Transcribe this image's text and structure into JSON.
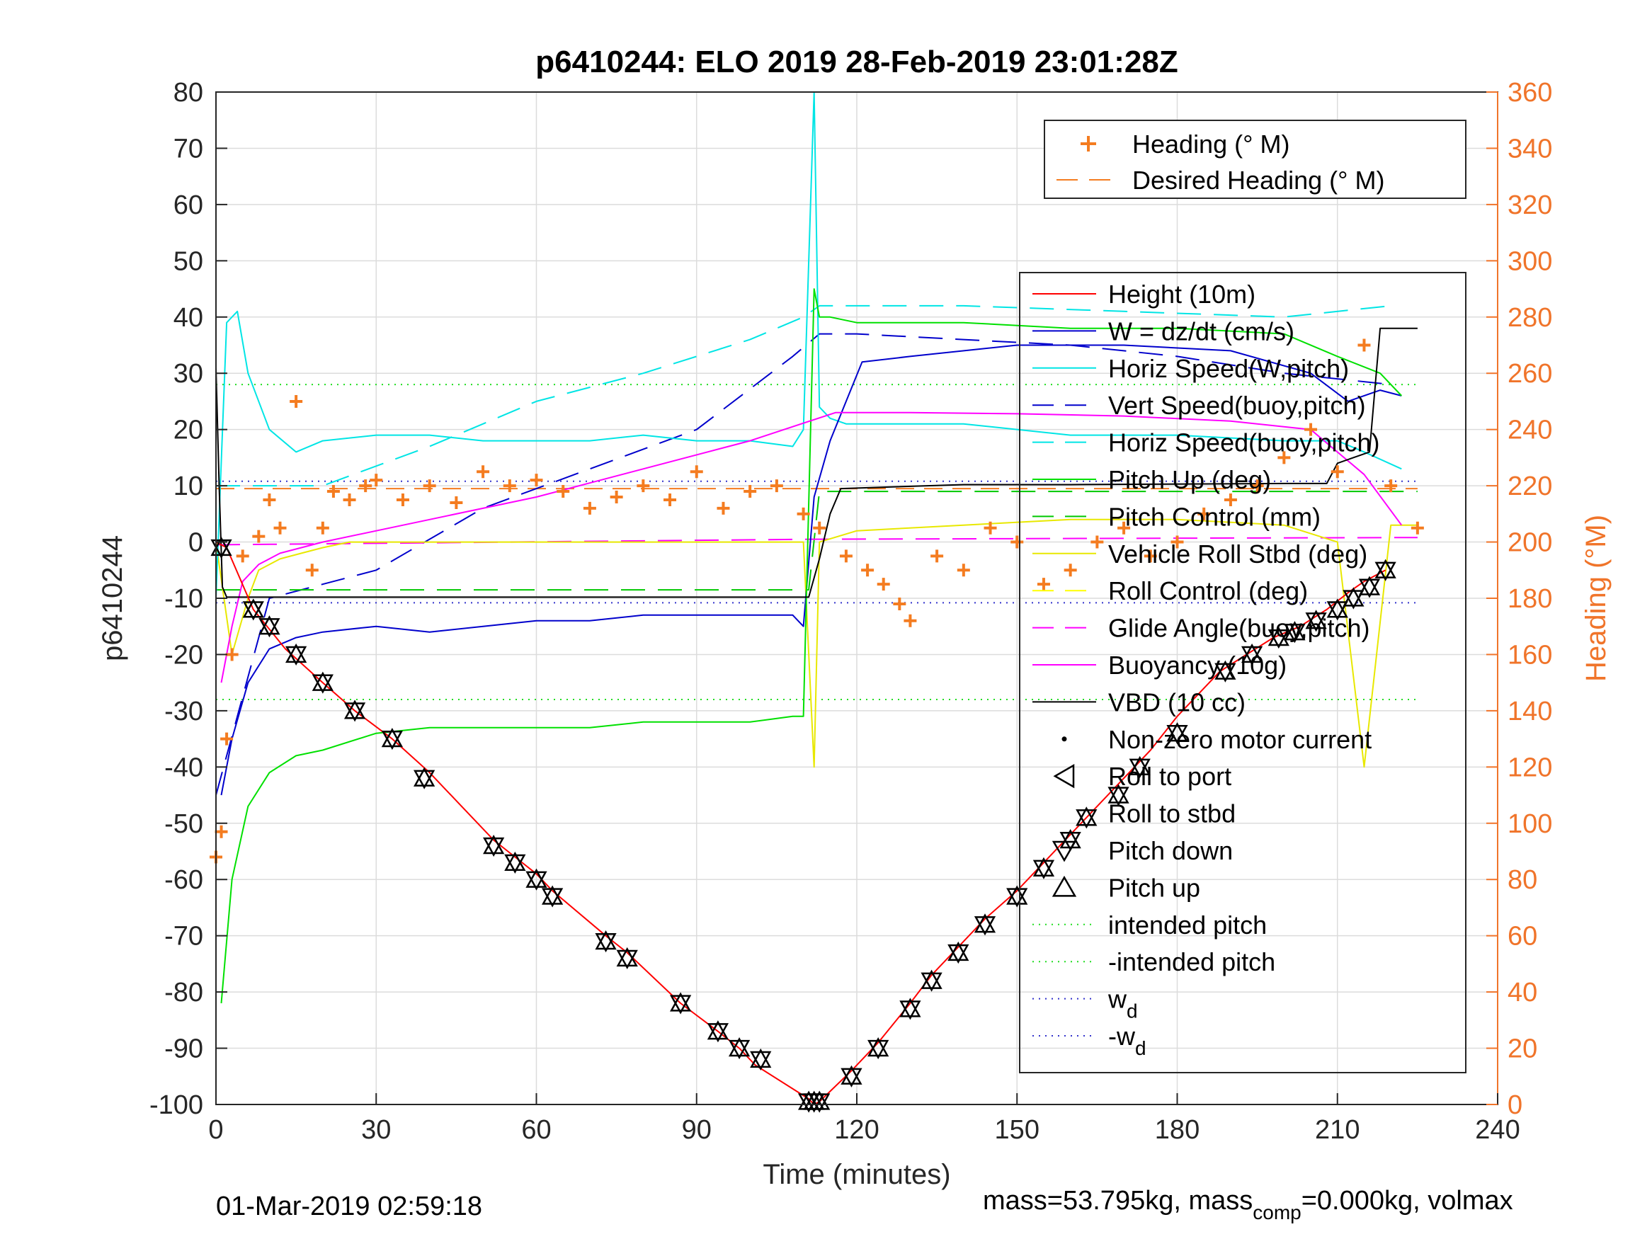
{
  "figure": {
    "title": "p6410244: ELO 2019 28-Feb-2019 23:01:28Z",
    "footer_left": "01-Mar-2019 02:59:18",
    "footer_right": {
      "prefix": "mass=53.795kg, mass",
      "sub": "comp",
      "suffix": "=0.000kg, volmax"
    }
  },
  "chart_data": {
    "type": "line",
    "title": "p6410244: ELO 2019 28-Feb-2019 23:01:28Z",
    "xlabel": "Time (minutes)",
    "ylabel": "p6410244",
    "ylabel_right": "Heading (°M)",
    "xlim": [
      0,
      240
    ],
    "ylim": [
      -100,
      80
    ],
    "ylim_right": [
      0,
      360
    ],
    "x_ticks": [
      0,
      30,
      60,
      90,
      120,
      150,
      180,
      210,
      240
    ],
    "y_ticks": [
      80,
      70,
      60,
      50,
      40,
      30,
      20,
      10,
      0,
      -10,
      -20,
      -30,
      -40,
      -50,
      -60,
      -70,
      -80,
      -90,
      -100
    ],
    "y_ticks_right": [
      360,
      340,
      320,
      300,
      280,
      260,
      240,
      220,
      200,
      180,
      160,
      140,
      120,
      100,
      80,
      60,
      40,
      20,
      0
    ],
    "grid": true,
    "colors": {
      "height": "#ff0000",
      "w": "#0000cc",
      "horiz_speed_w": "#00e5e5",
      "vert_speed_buoy": "#0000cc",
      "horiz_speed_buoy": "#0000ff",
      "pitch": "#00e000",
      "pitch_control": "#00c800",
      "roll": "#e8e800",
      "roll_control": "#ffff00",
      "glide_angle": "#ff00ff",
      "buoyancy": "#ff00ff",
      "vbd": "#000000",
      "heading": "#f47c20",
      "intended_pitch": "#22dd22",
      "wd": "#3333cc"
    },
    "legend_top": [
      {
        "label": "Heading (° M)",
        "style": "plus",
        "color": "#f47c20"
      },
      {
        "label": "Desired Heading (° M)",
        "style": "dash",
        "color": "#f47c20"
      }
    ],
    "legend_main": [
      {
        "label": "Height (10m)",
        "style": "solid",
        "color": "#ff0000"
      },
      {
        "label": "W = dz/dt (cm/s)",
        "style": "solid",
        "color": "#0000cc"
      },
      {
        "label": "Horiz Speed(W,pitch)",
        "style": "solid",
        "color": "#00e5e5"
      },
      {
        "label": "Vert Speed(buoy,pitch)",
        "style": "dash",
        "color": "#0000cc"
      },
      {
        "label": "Horiz Speed(buoy,pitch)",
        "style": "dash",
        "color": "#00e5e5"
      },
      {
        "label": "Pitch Up (deg)",
        "style": "solid",
        "color": "#00e000"
      },
      {
        "label": "Pitch Control (mm)",
        "style": "dash",
        "color": "#00c800"
      },
      {
        "label": "Vehicle Roll Stbd (deg)",
        "style": "solid",
        "color": "#e8e800"
      },
      {
        "label": "Roll Control (deg)",
        "style": "dash",
        "color": "#ffff00"
      },
      {
        "label": "Glide Angle(buoy,pitch)",
        "style": "dash",
        "color": "#ff00ff"
      },
      {
        "label": "Buoyancy (10g)",
        "style": "solid",
        "color": "#ff00ff"
      },
      {
        "label": "VBD (10 cc)",
        "style": "solid",
        "color": "#000000"
      },
      {
        "label": "Non-zero motor current",
        "style": "dot",
        "color": "#000000"
      },
      {
        "label": "Roll to port",
        "style": "tri-left",
        "color": "#000000"
      },
      {
        "label": "Roll to stbd",
        "style": "none",
        "color": "#000000"
      },
      {
        "label": "Pitch down",
        "style": "tri-down",
        "color": "#000000"
      },
      {
        "label": "Pitch up",
        "style": "tri-up",
        "color": "#000000"
      },
      {
        "label": "intended pitch",
        "style": "dotted",
        "color": "#22dd22"
      },
      {
        "label": "-intended pitch",
        "style": "dotted",
        "color": "#22dd22"
      },
      {
        "label": "w",
        "sub": "d",
        "style": "dotted",
        "color": "#3333cc"
      },
      {
        "label": "-w",
        "sub": "d",
        "style": "dotted",
        "color": "#3333cc"
      }
    ],
    "reference_lines": {
      "intended_pitch": 28,
      "neg_intended_pitch": -28,
      "wd": 10.8,
      "neg_wd": -10.8
    },
    "series": {
      "height": {
        "x": [
          0,
          2,
          7,
          13,
          20,
          26,
          33,
          40,
          52,
          56,
          60,
          63,
          73,
          77,
          87,
          94,
          98,
          101,
          111,
          112,
          113,
          119,
          124,
          130,
          134,
          139,
          144,
          150,
          155,
          160,
          165,
          170,
          175,
          180,
          188,
          193,
          198,
          203,
          208,
          212,
          215,
          219
        ],
        "y": [
          0,
          -1,
          -12,
          -19,
          -25,
          -30,
          -35,
          -41,
          -53,
          -56,
          -59,
          -62,
          -70,
          -73,
          -82,
          -87,
          -90,
          -93,
          -99,
          -100,
          -99.5,
          -94,
          -89,
          -82,
          -77,
          -72,
          -67,
          -62,
          -57,
          -52,
          -47,
          -42,
          -37,
          -31,
          -23,
          -20,
          -17,
          -15,
          -12,
          -9,
          -7,
          -5
        ]
      },
      "glider_pitch_markers": {
        "x": [
          1,
          7,
          10,
          15,
          20,
          26,
          33,
          39,
          52,
          56,
          60,
          63,
          73,
          77,
          87,
          94,
          98,
          102,
          111,
          112,
          113,
          119,
          124,
          130,
          134,
          139,
          144,
          150,
          155,
          160,
          163,
          169,
          173,
          180,
          189,
          194,
          199,
          202,
          206,
          210,
          213,
          216,
          219
        ],
        "y": [
          -1,
          -12,
          -15,
          -20,
          -25,
          -30,
          -35,
          -42,
          -54,
          -57,
          -60,
          -63,
          -71,
          -74,
          -82,
          -87,
          -90,
          -92,
          -99.5,
          -99.5,
          -99.5,
          -95,
          -90,
          -83,
          -78,
          -73,
          -68,
          -63,
          -58,
          -53,
          -49,
          -45,
          -40,
          -34,
          -23,
          -20,
          -17,
          -16,
          -14,
          -12,
          -10,
          -8,
          -5
        ]
      },
      "vbd": {
        "x": [
          0,
          0.6,
          1.2,
          2,
          111,
          113,
          115,
          117,
          140,
          160,
          200,
          208,
          210,
          216,
          218,
          225
        ],
        "y": [
          31,
          10,
          -8,
          -9.8,
          -9.8,
          -3,
          5,
          9.5,
          10.2,
          10.2,
          10.4,
          10.4,
          14,
          16,
          38,
          38
        ]
      },
      "buoyancy": {
        "x": [
          1,
          3,
          5,
          8,
          12,
          20,
          40,
          60,
          80,
          100,
          116,
          130,
          150,
          170,
          190,
          205,
          215,
          222
        ],
        "y": [
          -25,
          -15,
          -7,
          -4,
          -2,
          0,
          4,
          8,
          13,
          18,
          23,
          23,
          22.8,
          22.4,
          21.5,
          20,
          12,
          3
        ]
      },
      "glide_angle": {
        "x": [
          0,
          112,
          113,
          225
        ],
        "y": [
          -0.5,
          0.5,
          0.5,
          0.8
        ]
      },
      "vert_speed_buoy": {
        "x": [
          0,
          10,
          30,
          50,
          70,
          90,
          108,
          113,
          120,
          140,
          160,
          180,
          200,
          220
        ],
        "y": [
          -45,
          -10,
          -5,
          6,
          13,
          20,
          33,
          37,
          37,
          36,
          35,
          33,
          30,
          28
        ]
      },
      "horiz_speed_buoy": {
        "x": [
          0,
          20,
          40,
          60,
          80,
          100,
          110,
          113,
          140,
          170,
          200,
          220
        ],
        "y": [
          10,
          10,
          17,
          25,
          30,
          36,
          40,
          42,
          42,
          41,
          40,
          42
        ]
      },
      "w": {
        "x": [
          1,
          3,
          6,
          10,
          15,
          20,
          30,
          40,
          50,
          60,
          70,
          80,
          90,
          100,
          108,
          110,
          112,
          115,
          118,
          121,
          130,
          150,
          170,
          190,
          205,
          212,
          218,
          222
        ],
        "y": [
          -45,
          -35,
          -25,
          -19,
          -17,
          -16,
          -15,
          -16,
          -15,
          -14,
          -14,
          -13,
          -13,
          -13,
          -13,
          -15,
          8,
          18,
          25,
          32,
          33,
          35,
          35,
          34,
          30,
          25,
          27,
          26
        ]
      },
      "horiz_speed_w": {
        "x": [
          0,
          2,
          4,
          6,
          10,
          15,
          20,
          30,
          40,
          50,
          60,
          70,
          80,
          90,
          100,
          108,
          110,
          112,
          113,
          115,
          118,
          125,
          140,
          160,
          180,
          200,
          210,
          215,
          222
        ],
        "y": [
          -10,
          39,
          41,
          30,
          20,
          16,
          18,
          19,
          19,
          18,
          18,
          18,
          19,
          18,
          18,
          17,
          20,
          80,
          24,
          22,
          21,
          21,
          21,
          19,
          19,
          18,
          18,
          16,
          13
        ]
      },
      "pitch": {
        "x": [
          1,
          3,
          6,
          10,
          15,
          20,
          30,
          40,
          50,
          60,
          70,
          80,
          90,
          100,
          108,
          110,
          112,
          113,
          115,
          120,
          140,
          160,
          180,
          200,
          210,
          218,
          222
        ],
        "y": [
          -82,
          -60,
          -47,
          -41,
          -38,
          -37,
          -34,
          -33,
          -33,
          -33,
          -33,
          -32,
          -32,
          -32,
          -31,
          -31,
          45,
          40,
          40,
          39,
          39,
          38,
          38,
          37,
          33,
          30,
          26
        ]
      },
      "pitch_control": {
        "x": [
          0,
          111,
          113,
          225
        ],
        "y": [
          -8.5,
          -8.5,
          9,
          9
        ]
      },
      "roll": {
        "x": [
          0,
          3,
          6,
          8,
          12,
          16,
          20,
          25,
          30,
          40,
          50,
          60,
          70,
          80,
          90,
          100,
          110,
          112,
          113,
          120,
          140,
          160,
          180,
          200,
          210,
          215,
          220,
          225
        ],
        "y": [
          0,
          -20,
          -10,
          -5,
          -3,
          -2,
          -1,
          0,
          0,
          0,
          0,
          0,
          0,
          0,
          0,
          0,
          0,
          -40,
          0,
          2,
          3,
          4,
          4,
          3,
          0,
          -40,
          3,
          3
        ]
      },
      "heading": {
        "x": [
          0,
          1,
          2,
          3,
          5,
          8,
          10,
          12,
          15,
          18,
          20,
          22,
          25,
          28,
          30,
          35,
          40,
          45,
          50,
          55,
          60,
          65,
          70,
          75,
          80,
          85,
          90,
          95,
          100,
          105,
          110,
          113,
          118,
          122,
          125,
          128,
          130,
          135,
          140,
          145,
          150,
          155,
          160,
          165,
          170,
          175,
          180,
          185,
          190,
          195,
          200,
          205,
          210,
          215,
          220,
          225
        ],
        "y": [
          88,
          97,
          130,
          160,
          195,
          202,
          215,
          205,
          250,
          190,
          205,
          218,
          215,
          220,
          222,
          215,
          220,
          214,
          225,
          220,
          222,
          218,
          212,
          216,
          220,
          215,
          225,
          212,
          218,
          220,
          210,
          205,
          195,
          190,
          185,
          178,
          172,
          195,
          190,
          205,
          200,
          185,
          190,
          200,
          205,
          195,
          200,
          210,
          215,
          220,
          230,
          240,
          225,
          270,
          220,
          205
        ]
      },
      "desired_heading": {
        "x": [
          0,
          225
        ],
        "y": [
          219,
          219
        ]
      }
    }
  }
}
